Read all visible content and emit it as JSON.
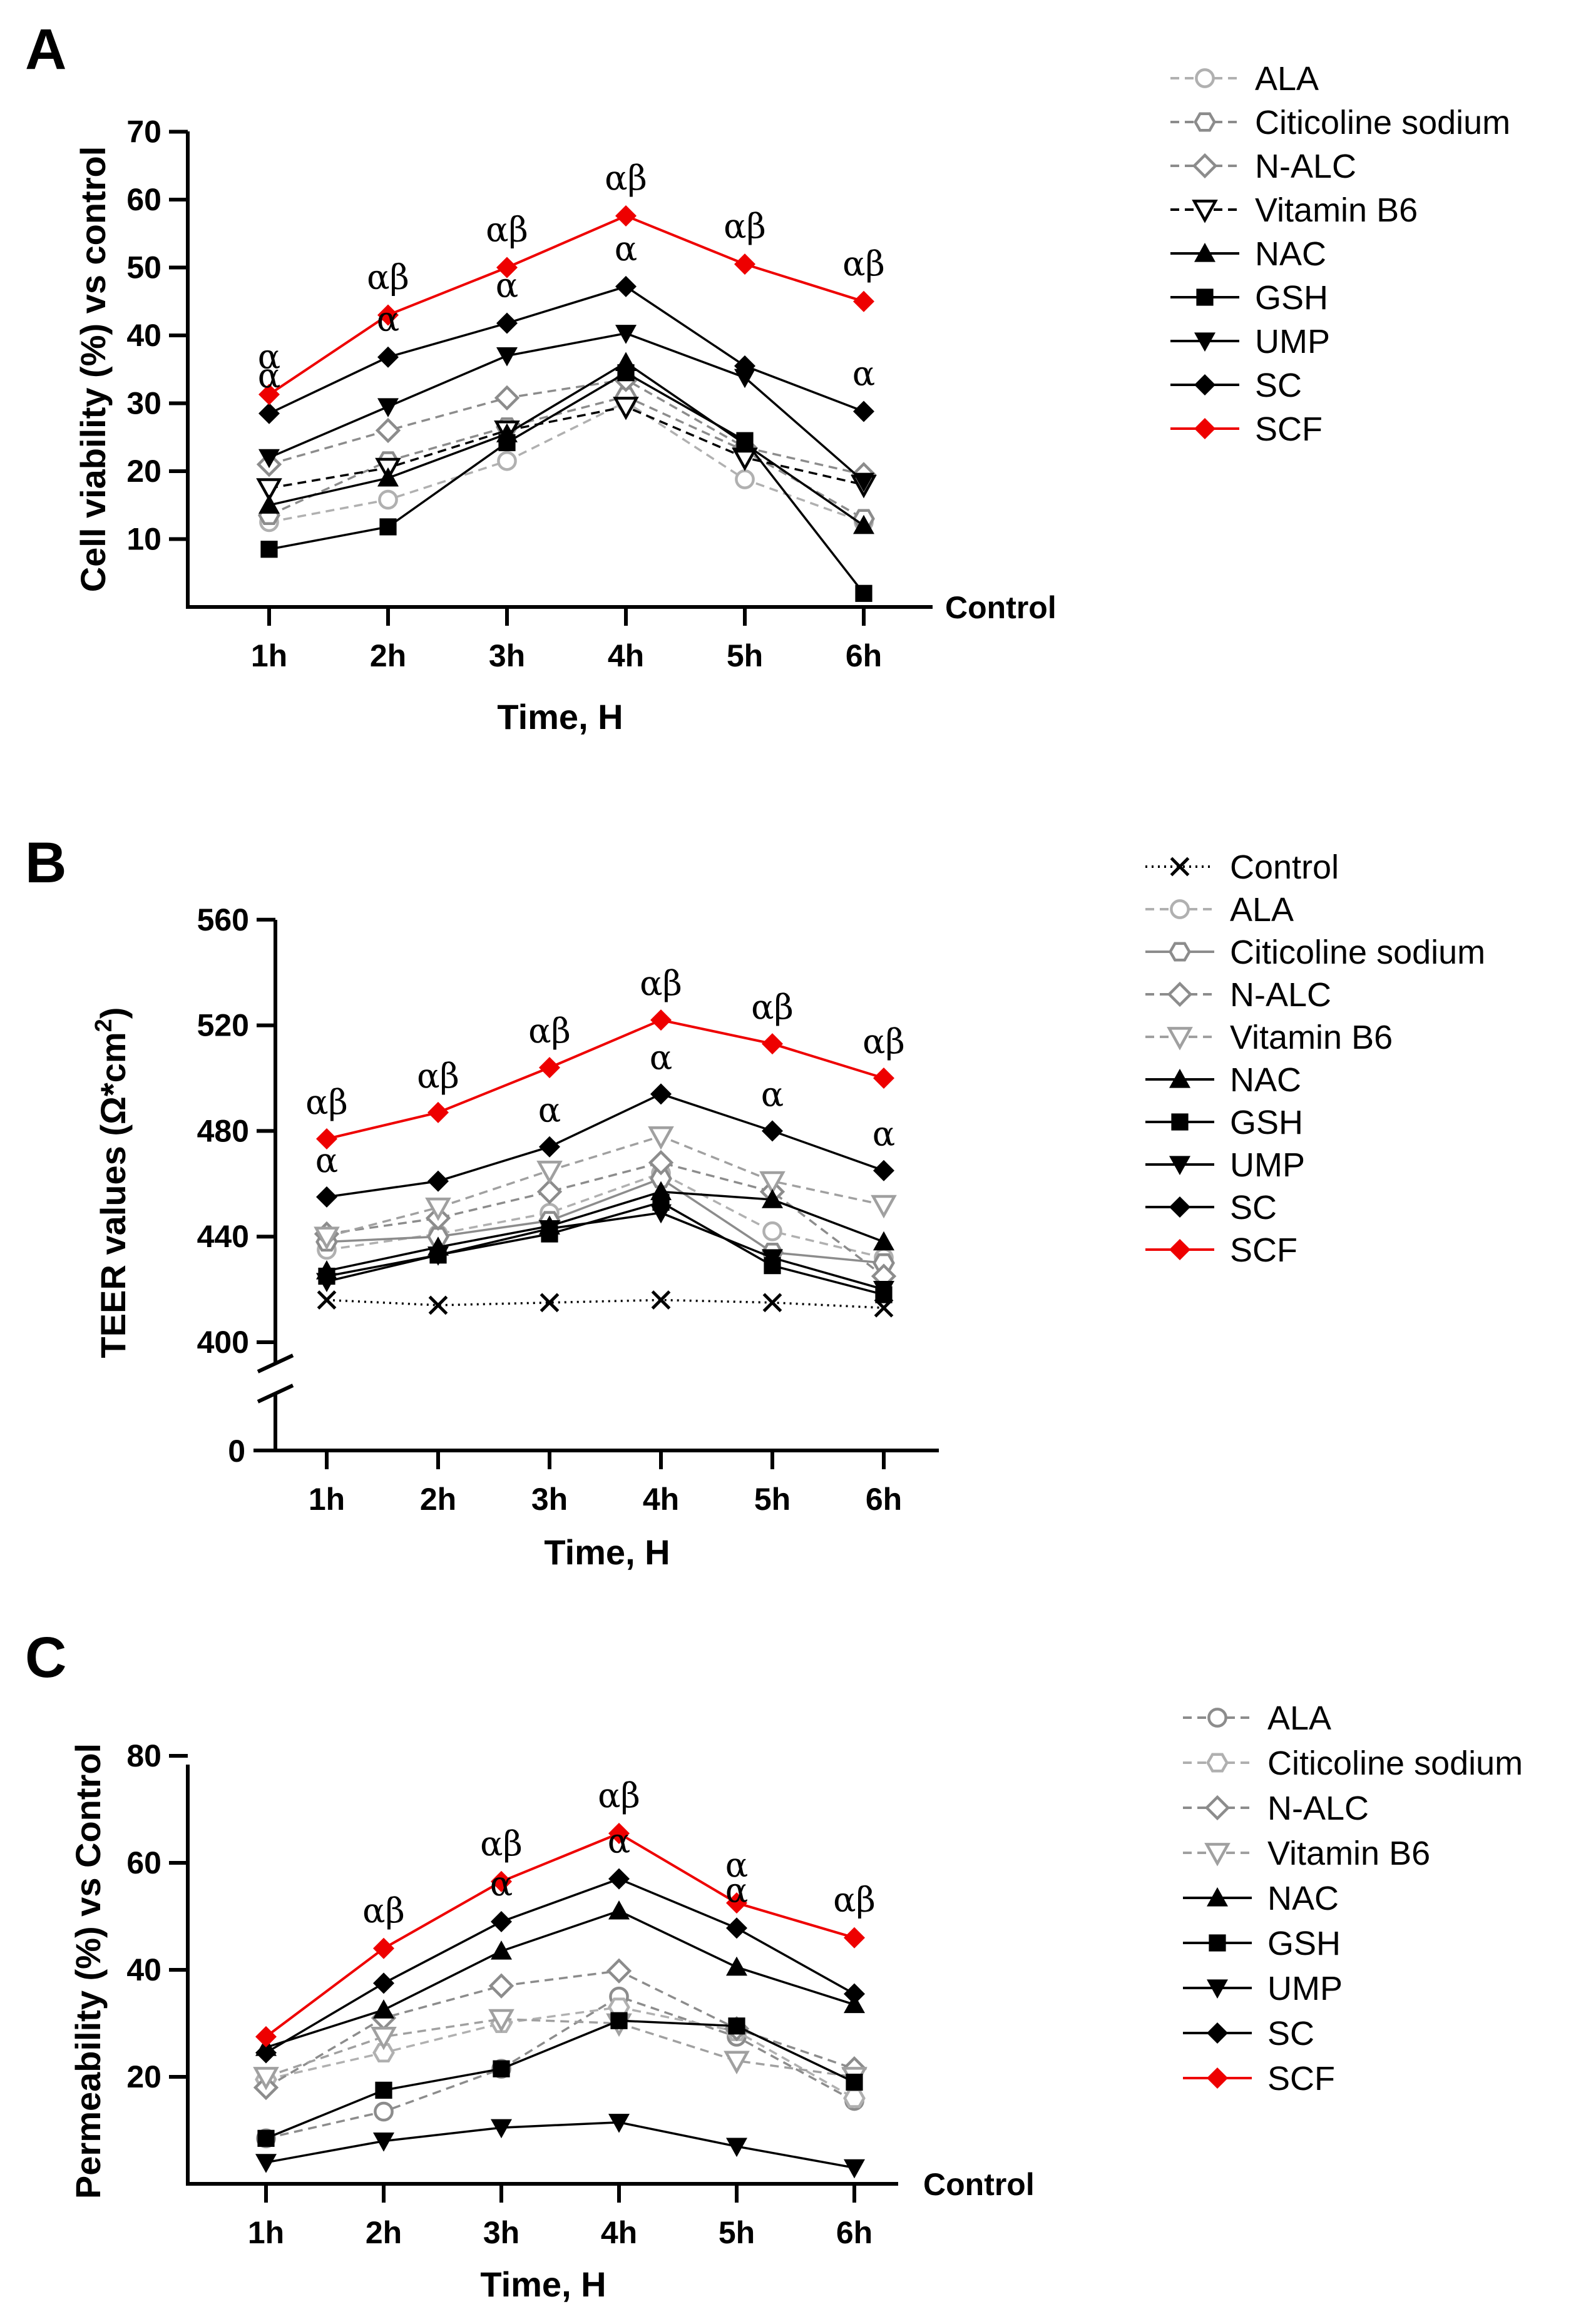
{
  "chart_data": [
    {
      "type": "line",
      "panel": "A",
      "xlabel": "Time, H",
      "ylabel": "Cell viability (%) vs control",
      "categories": [
        "1h",
        "2h",
        "3h",
        "4h",
        "5h",
        "6h"
      ],
      "ylim": [
        0,
        70
      ],
      "yticks": [
        10,
        20,
        30,
        40,
        50,
        60,
        70
      ],
      "baseline_label": "Control",
      "series": [
        {
          "name": "ALA",
          "values": [
            12.5,
            15.8,
            21.5,
            30.2,
            18.8,
            12.5
          ],
          "color": "#b0b0b0",
          "marker": "circle",
          "dash": true
        },
        {
          "name": "Citicoline sodium",
          "values": [
            13.5,
            21.5,
            26.5,
            31.0,
            23.0,
            13.0
          ],
          "color": "#8c8c8c",
          "marker": "hexagon",
          "dash": true
        },
        {
          "name": "N-ALC",
          "values": [
            21.0,
            26.0,
            30.8,
            33.5,
            23.5,
            19.5
          ],
          "color": "#8c8c8c",
          "marker": "diamond-open",
          "dash": true
        },
        {
          "name": "Vitamin B6",
          "values": [
            17.5,
            20.5,
            26.0,
            29.5,
            22.0,
            18.0
          ],
          "color": "#000000",
          "marker": "triangle-down-open",
          "dash": true
        },
        {
          "name": "NAC",
          "values": [
            15.0,
            19.0,
            25.5,
            36.0,
            24.0,
            12.0
          ],
          "color": "#000000",
          "marker": "triangle",
          "dash": false
        },
        {
          "name": "GSH",
          "values": [
            8.5,
            11.8,
            24.2,
            34.5,
            24.5,
            2.0
          ],
          "color": "#000000",
          "marker": "square",
          "dash": false
        },
        {
          "name": "UMP",
          "values": [
            22.0,
            29.5,
            37.0,
            40.3,
            33.8,
            18.5
          ],
          "color": "#000000",
          "marker": "triangle-down",
          "dash": false
        },
        {
          "name": "SC",
          "values": [
            28.5,
            36.8,
            41.8,
            47.2,
            35.5,
            28.8
          ],
          "color": "#000000",
          "marker": "diamond",
          "dash": false
        },
        {
          "name": "SCF",
          "values": [
            31.3,
            43.0,
            50.0,
            57.6,
            50.5,
            45.0
          ],
          "color": "#ee0000",
          "marker": "diamond",
          "dash": false
        }
      ],
      "annotations": [
        {
          "text": "α",
          "series": "SCF",
          "x": "1h"
        },
        {
          "text": "α",
          "series": "SC",
          "x": "1h"
        },
        {
          "text": "αβ",
          "series": "SCF",
          "x": "2h"
        },
        {
          "text": "α",
          "series": "SC",
          "x": "2h"
        },
        {
          "text": "αβ",
          "series": "SCF",
          "x": "3h"
        },
        {
          "text": "α",
          "series": "SC",
          "x": "3h"
        },
        {
          "text": "αβ",
          "series": "SCF",
          "x": "4h"
        },
        {
          "text": "α",
          "series": "SC",
          "x": "4h"
        },
        {
          "text": "αβ",
          "series": "SCF",
          "x": "5h"
        },
        {
          "text": "αβ",
          "series": "SCF",
          "x": "6h"
        },
        {
          "text": "α",
          "series": "SC",
          "x": "6h"
        }
      ]
    },
    {
      "type": "line",
      "panel": "B",
      "xlabel": "Time, H",
      "ylabel": "TEER values (Ω*cm²)",
      "ylabel_main": "TEER values (Ω*cm",
      "ylabel_sup": "2",
      "ylabel_close": ")",
      "categories": [
        "1h",
        "2h",
        "3h",
        "4h",
        "5h",
        "6h"
      ],
      "ylim": [
        400,
        560
      ],
      "yticks": [
        400,
        440,
        480,
        520,
        560
      ],
      "ybreak_label": "0",
      "series": [
        {
          "name": "Control",
          "values": [
            416,
            414,
            415,
            416,
            415,
            413
          ],
          "color": "#000000",
          "marker": "x",
          "dash": "dot"
        },
        {
          "name": "ALA",
          "values": [
            435,
            441,
            449,
            464,
            442,
            432
          ],
          "color": "#b0b0b0",
          "marker": "circle",
          "dash": true
        },
        {
          "name": "Citicoline sodium",
          "values": [
            438,
            440,
            446,
            462,
            434,
            430
          ],
          "color": "#8c8c8c",
          "marker": "hexagon",
          "dash": false
        },
        {
          "name": "N-ALC",
          "values": [
            441,
            447,
            457,
            468,
            457,
            425
          ],
          "color": "#8c8c8c",
          "marker": "diamond-open",
          "dash": true
        },
        {
          "name": "Vitamin B6",
          "values": [
            440,
            451,
            465,
            478,
            461,
            452
          ],
          "color": "#a0a0a0",
          "marker": "triangle-down-open",
          "dash": true
        },
        {
          "name": "NAC",
          "values": [
            427,
            436,
            444,
            457,
            454,
            438
          ],
          "color": "#000000",
          "marker": "triangle",
          "dash": false
        },
        {
          "name": "GSH",
          "values": [
            425,
            433,
            441,
            453,
            429,
            418
          ],
          "color": "#000000",
          "marker": "square",
          "dash": false
        },
        {
          "name": "UMP",
          "values": [
            423,
            433,
            443,
            449,
            432,
            420
          ],
          "color": "#000000",
          "marker": "triangle-down",
          "dash": false
        },
        {
          "name": "SC",
          "values": [
            455,
            461,
            474,
            494,
            480,
            465
          ],
          "color": "#000000",
          "marker": "diamond",
          "dash": false
        },
        {
          "name": "SCF",
          "values": [
            477,
            487,
            504,
            522,
            513,
            500
          ],
          "color": "#ee0000",
          "marker": "diamond",
          "dash": false
        }
      ],
      "annotations": [
        {
          "text": "αβ",
          "series": "SCF",
          "x": "1h"
        },
        {
          "text": "α",
          "series": "SC",
          "x": "1h"
        },
        {
          "text": "αβ",
          "series": "SCF",
          "x": "2h"
        },
        {
          "text": "αβ",
          "series": "SCF",
          "x": "3h"
        },
        {
          "text": "α",
          "series": "SC",
          "x": "3h"
        },
        {
          "text": "αβ",
          "series": "SCF",
          "x": "4h"
        },
        {
          "text": "α",
          "series": "SC",
          "x": "4h"
        },
        {
          "text": "αβ",
          "series": "SCF",
          "x": "5h"
        },
        {
          "text": "α",
          "series": "SC",
          "x": "5h"
        },
        {
          "text": "αβ",
          "series": "SCF",
          "x": "6h"
        },
        {
          "text": "α",
          "series": "SC",
          "x": "6h"
        }
      ]
    },
    {
      "type": "line",
      "panel": "C",
      "xlabel": "Time, H",
      "ylabel": "Permeability (%) vs Control",
      "categories": [
        "1h",
        "2h",
        "3h",
        "4h",
        "5h",
        "6h"
      ],
      "ylim": [
        0,
        80
      ],
      "yticks": [
        20,
        40,
        60,
        80
      ],
      "baseline_label": "Control",
      "series": [
        {
          "name": "ALA",
          "values": [
            8.5,
            13.5,
            21.5,
            35.0,
            27.5,
            15.5
          ],
          "color": "#8c8c8c",
          "marker": "circle",
          "dash": true
        },
        {
          "name": "Citicoline sodium",
          "values": [
            19.5,
            24.5,
            30.0,
            33.0,
            28.5,
            16.0
          ],
          "color": "#b0b0b0",
          "marker": "hexagon",
          "dash": true
        },
        {
          "name": "N-ALC",
          "values": [
            18.0,
            31.0,
            37.0,
            39.8,
            29.0,
            21.5
          ],
          "color": "#8c8c8c",
          "marker": "diamond-open",
          "dash": true
        },
        {
          "name": "Vitamin B6",
          "values": [
            20.0,
            27.5,
            30.8,
            30.0,
            23.0,
            20.0
          ],
          "color": "#a0a0a0",
          "marker": "triangle-down-open",
          "dash": true
        },
        {
          "name": "NAC",
          "values": [
            25.5,
            32.5,
            43.5,
            51.0,
            40.5,
            33.5
          ],
          "color": "#000000",
          "marker": "triangle",
          "dash": false
        },
        {
          "name": "GSH",
          "values": [
            8.5,
            17.5,
            21.5,
            30.5,
            29.5,
            19.0
          ],
          "color": "#000000",
          "marker": "square",
          "dash": false
        },
        {
          "name": "UMP",
          "values": [
            4.0,
            8.0,
            10.5,
            11.5,
            7.0,
            3.0
          ],
          "color": "#000000",
          "marker": "triangle-down",
          "dash": false
        },
        {
          "name": "SC",
          "values": [
            24.5,
            37.5,
            49.0,
            57.0,
            47.8,
            35.5
          ],
          "color": "#000000",
          "marker": "diamond",
          "dash": false
        },
        {
          "name": "SCF",
          "values": [
            27.5,
            44.0,
            56.5,
            65.5,
            52.5,
            46.0
          ],
          "color": "#ee0000",
          "marker": "diamond",
          "dash": false
        }
      ],
      "annotations": [
        {
          "text": "αβ",
          "series": "SCF",
          "x": "2h"
        },
        {
          "text": "αβ",
          "series": "SCF",
          "x": "3h"
        },
        {
          "text": "α",
          "series": "SC",
          "x": "3h"
        },
        {
          "text": "αβ",
          "series": "SCF",
          "x": "4h"
        },
        {
          "text": "α",
          "series": "SC",
          "x": "4h"
        },
        {
          "text": "α",
          "series": "SCF",
          "x": "5h"
        },
        {
          "text": "α",
          "series": "SC",
          "x": "5h"
        },
        {
          "text": "αβ",
          "series": "SCF",
          "x": "6h"
        }
      ]
    }
  ]
}
